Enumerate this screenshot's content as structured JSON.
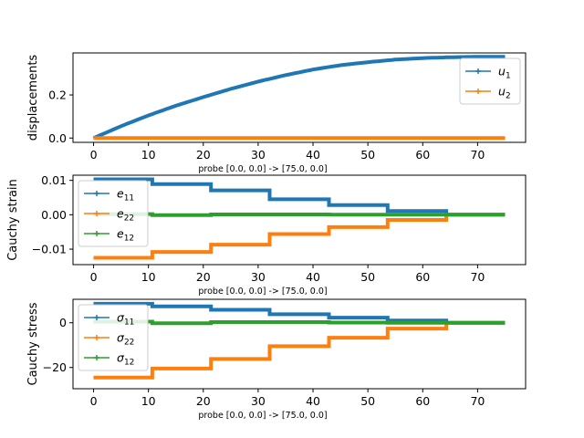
{
  "chart_data": [
    {
      "type": "line",
      "ylabel": "displacements",
      "xlabel": "probe [0.0, 0.0] -> [75.0, 0.0]",
      "xlim": [
        -3.75,
        78.75
      ],
      "ylim": [
        -0.02,
        0.395
      ],
      "xticks": [
        "0",
        "10",
        "20",
        "30",
        "40",
        "50",
        "60",
        "70"
      ],
      "xtick_values": [
        0,
        10,
        20,
        30,
        40,
        50,
        60,
        70
      ],
      "yticks": [
        "0.0",
        "0.2"
      ],
      "ytick_values": [
        0.0,
        0.2
      ],
      "legend_position": "upper-right",
      "series": [
        {
          "name": "u",
          "subscript": "1",
          "color": "#1f77b4",
          "x": [
            0,
            5,
            10,
            15,
            20,
            25,
            30,
            35,
            40,
            45,
            50,
            55,
            60,
            65,
            70,
            75
          ],
          "y": [
            0.0,
            0.055,
            0.105,
            0.15,
            0.19,
            0.228,
            0.262,
            0.292,
            0.318,
            0.338,
            0.352,
            0.364,
            0.371,
            0.375,
            0.377,
            0.377
          ]
        },
        {
          "name": "u",
          "subscript": "2",
          "color": "#ff7f0e",
          "x": [
            0,
            75
          ],
          "y": [
            0.0,
            0.0
          ]
        }
      ]
    },
    {
      "type": "line",
      "ylabel": "Cauchy strain",
      "xlabel": "probe [0.0, 0.0] -> [75.0, 0.0]",
      "xlim": [
        -3.75,
        78.75
      ],
      "ylim": [
        -0.0145,
        0.0115
      ],
      "xticks": [
        "0",
        "10",
        "20",
        "30",
        "40",
        "50",
        "60",
        "70"
      ],
      "xtick_values": [
        0,
        10,
        20,
        30,
        40,
        50,
        60,
        70
      ],
      "yticks": [
        "0.01",
        "0.00",
        "−0.01"
      ],
      "ytick_values": [
        0.01,
        0.0,
        -0.01
      ],
      "legend_position": "upper-left",
      "series": [
        {
          "name": "e",
          "subscript": "11",
          "color": "#1f77b4",
          "steps": [
            [
              0,
              10.7,
              0.0103
            ],
            [
              10.7,
              21.4,
              0.0089
            ],
            [
              21.4,
              32.1,
              0.0071
            ],
            [
              32.1,
              42.9,
              0.0045
            ],
            [
              42.9,
              53.6,
              0.0028
            ],
            [
              53.6,
              64.3,
              0.0011
            ],
            [
              64.3,
              75,
              0.0
            ]
          ]
        },
        {
          "name": "e",
          "subscript": "22",
          "color": "#ff7f0e",
          "steps": [
            [
              0,
              10.7,
              -0.0125
            ],
            [
              10.7,
              21.4,
              -0.0108
            ],
            [
              21.4,
              32.1,
              -0.0087
            ],
            [
              32.1,
              42.9,
              -0.0056
            ],
            [
              42.9,
              53.6,
              -0.0036
            ],
            [
              53.6,
              64.3,
              -0.0015
            ],
            [
              64.3,
              75,
              0.0
            ]
          ]
        },
        {
          "name": "e",
          "subscript": "12",
          "color": "#2ca02c",
          "steps": [
            [
              0,
              10.7,
              0.0002
            ],
            [
              10.7,
              21.4,
              -0.0001
            ],
            [
              21.4,
              32.1,
              0.0001
            ],
            [
              32.1,
              42.9,
              0.0001
            ],
            [
              42.9,
              53.6,
              0.0
            ],
            [
              53.6,
              64.3,
              0.0
            ],
            [
              64.3,
              75,
              0.0
            ]
          ]
        }
      ]
    },
    {
      "type": "line",
      "ylabel": "Cauchy stress",
      "xlabel": "probe [0.0, 0.0] -> [75.0, 0.0]",
      "xlim": [
        -3.75,
        78.75
      ],
      "ylim": [
        -29.5,
        10.5
      ],
      "xticks": [
        "0",
        "10",
        "20",
        "30",
        "40",
        "50",
        "60",
        "70"
      ],
      "xtick_values": [
        0,
        10,
        20,
        30,
        40,
        50,
        60,
        70
      ],
      "yticks": [
        "0",
        "−20"
      ],
      "ytick_values": [
        0,
        -20
      ],
      "legend_position": "upper-left",
      "series": [
        {
          "name": "σ",
          "subscript": "11",
          "color": "#1f77b4",
          "steps": [
            [
              0,
              10.7,
              8.5
            ],
            [
              10.7,
              21.4,
              7.3
            ],
            [
              21.4,
              32.1,
              5.8
            ],
            [
              32.1,
              42.9,
              3.8
            ],
            [
              42.9,
              53.6,
              2.3
            ],
            [
              53.6,
              64.3,
              1.0
            ],
            [
              64.3,
              75,
              0.0
            ]
          ]
        },
        {
          "name": "σ",
          "subscript": "22",
          "color": "#ff7f0e",
          "steps": [
            [
              0,
              10.7,
              -24.5
            ],
            [
              10.7,
              21.4,
              -20.5
            ],
            [
              21.4,
              32.1,
              -16.2
            ],
            [
              32.1,
              42.9,
              -10.5
            ],
            [
              42.9,
              53.6,
              -6.7
            ],
            [
              53.6,
              64.3,
              -2.6
            ],
            [
              64.3,
              75,
              0.0
            ]
          ]
        },
        {
          "name": "σ",
          "subscript": "12",
          "color": "#2ca02c",
          "steps": [
            [
              0,
              10.7,
              0.5
            ],
            [
              10.7,
              21.4,
              -0.2
            ],
            [
              21.4,
              32.1,
              0.3
            ],
            [
              32.1,
              42.9,
              0.3
            ],
            [
              42.9,
              53.6,
              0.1
            ],
            [
              53.6,
              64.3,
              0.0
            ],
            [
              64.3,
              75,
              0.0
            ]
          ]
        }
      ]
    }
  ]
}
